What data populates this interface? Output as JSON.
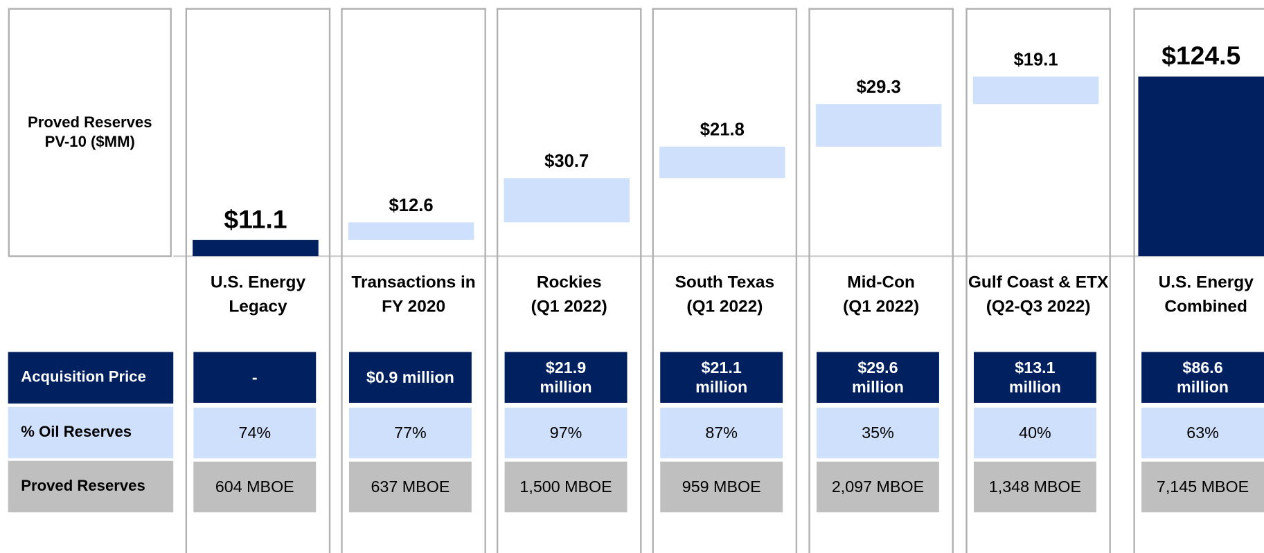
{
  "chart_data": {
    "type": "waterfall",
    "y_label": [
      "Proved Reserves",
      "PV-10 ($MM)"
    ],
    "categories": [
      "U.S. Energy\nLegacy",
      "Transactions in\nFY 2020",
      "Rockies\n(Q1 2022)",
      "South Texas\n(Q1 2022)",
      "Mid-Con\n(Q1 2022)",
      "Gulf Coast & ETX\n(Q2-Q3 2022)",
      "U.S. Energy\nCombined"
    ],
    "values": [
      11.1,
      12.6,
      30.7,
      21.8,
      29.3,
      19.1,
      124.5
    ],
    "value_labels": [
      "$11.1",
      "$12.6",
      "$30.7",
      "$21.8",
      "$29.3",
      "$19.1",
      "$124.5"
    ],
    "colors": [
      "#002060",
      "#cfe0fc",
      "#cfe0fc",
      "#cfe0fc",
      "#cfe0fc",
      "#cfe0fc",
      "#002060"
    ]
  },
  "table": {
    "rows": [
      {
        "label": "Acquisition Price",
        "color": "#002060",
        "cells": [
          "-",
          "$0.9 million",
          "$21.9\nmillion",
          "$21.1\nmillion",
          "$29.6\nmillion",
          "$13.1\nmillion",
          "$86.6\nmillion"
        ]
      },
      {
        "label": "% Oil Reserves",
        "color": "#cfe0fc",
        "cells": [
          "74%",
          "77%",
          "97%",
          "87%",
          "35%",
          "40%",
          "63%"
        ]
      },
      {
        "label": "Proved Reserves",
        "color": "#bfbfbf",
        "cells": [
          "604 MBOE",
          "637 MBOE",
          "1,500 MBOE",
          "959 MBOE",
          "2,097 MBOE",
          "1,348 MBOE",
          "7,145 MBOE"
        ]
      }
    ]
  }
}
